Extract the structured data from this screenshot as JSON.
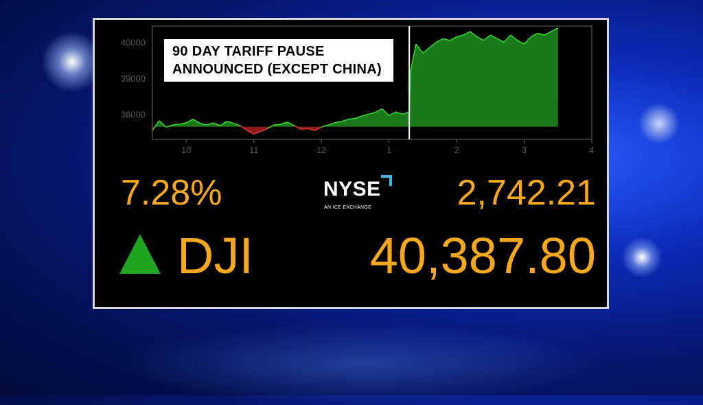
{
  "banner": {
    "line1": "90 DAY TARIFF PAUSE",
    "line2": "ANNOUNCED (EXCEPT CHINA)"
  },
  "ticker": {
    "percent_change": "7.28%",
    "points_change": "2,742.21",
    "symbol": "DJI",
    "index_value": "40,387.80",
    "direction": "up",
    "up_color": "#1fa51f",
    "text_color": "#f7a81b"
  },
  "nyse_logo": {
    "word": "NYSE",
    "tagline": "AN ICE EXCHANGE"
  },
  "chart_data": {
    "type": "area",
    "baseline": 37650,
    "ylim": [
      37300,
      40450
    ],
    "xlim": [
      9.5,
      16
    ],
    "y_ticks": [
      38000,
      39000,
      40000
    ],
    "y_tick_labels": [
      "38000",
      "39000",
      "40000"
    ],
    "x_ticks": [
      10,
      11,
      12,
      13,
      14,
      15,
      16
    ],
    "x_tick_labels": [
      "10",
      "11",
      "12",
      "1",
      "2",
      "3",
      "4"
    ],
    "event_marker_x": 13.3,
    "colors": {
      "above": "#1a7a1a",
      "below": "#8b1a1a",
      "line_above": "#33dd33",
      "line_below": "#ee3333",
      "marker": "#ffffff",
      "axis": "#666666",
      "tick_label": "#555555"
    },
    "x": [
      9.5,
      9.6,
      9.7,
      9.8,
      9.9,
      10.0,
      10.1,
      10.2,
      10.3,
      10.4,
      10.5,
      10.6,
      10.7,
      10.8,
      10.9,
      11.0,
      11.1,
      11.2,
      11.3,
      11.4,
      11.5,
      11.6,
      11.7,
      11.8,
      11.9,
      12.0,
      12.1,
      12.2,
      12.3,
      12.4,
      12.5,
      12.6,
      12.7,
      12.8,
      12.9,
      13.0,
      13.1,
      13.2,
      13.3,
      13.32,
      13.4,
      13.5,
      13.6,
      13.7,
      13.8,
      13.9,
      14.0,
      14.1,
      14.2,
      14.3,
      14.4,
      14.5,
      14.6,
      14.7,
      14.8,
      14.9,
      15.0,
      15.1,
      15.2,
      15.3,
      15.4,
      15.5
    ],
    "values": [
      37550,
      37820,
      37640,
      37700,
      37720,
      37760,
      37860,
      37750,
      37700,
      37760,
      37680,
      37800,
      37750,
      37680,
      37550,
      37450,
      37520,
      37600,
      37700,
      37720,
      37780,
      37680,
      37580,
      37600,
      37550,
      37640,
      37700,
      37760,
      37800,
      37860,
      37880,
      37950,
      38000,
      38050,
      38150,
      37960,
      38060,
      38000,
      38060,
      39200,
      39950,
      39700,
      39850,
      40000,
      40100,
      40050,
      40150,
      40200,
      40300,
      40150,
      40050,
      40200,
      40100,
      40000,
      40200,
      40050,
      39950,
      40150,
      40250,
      40200,
      40300,
      40400
    ]
  }
}
